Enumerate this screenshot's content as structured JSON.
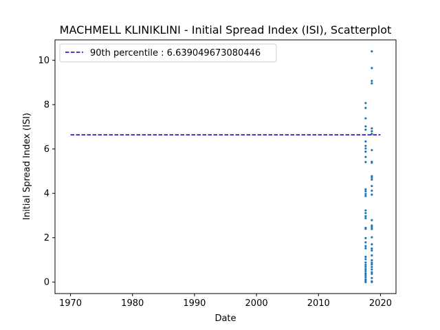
{
  "chart_data": {
    "type": "scatter",
    "title": "MACHMELL KLINIKLINI - Initial Spread Index (ISI), Scatterplot",
    "xlabel": "Date",
    "ylabel": "Initial Spread Index (ISI)",
    "xlim": [
      1967.5,
      2022.5
    ],
    "ylim": [
      -0.52,
      10.92
    ],
    "xticks": [
      1970,
      1980,
      1990,
      2000,
      2010,
      2020
    ],
    "yticks": [
      0,
      2,
      4,
      6,
      8,
      10
    ],
    "grid": false,
    "legend_position": "upper-left",
    "reference_line": {
      "label": "90th percentile : 6.639049673080446",
      "value": 6.639049673080446,
      "x_range": [
        1970,
        2020
      ],
      "color": "#0000cc",
      "style": "dashed"
    },
    "series": [
      {
        "color": "#1f77b4",
        "points": [
          {
            "x": 2017.6,
            "y": 8.07
          },
          {
            "x": 2017.6,
            "y": 7.85
          },
          {
            "x": 2017.6,
            "y": 7.38
          },
          {
            "x": 2017.6,
            "y": 7.02
          },
          {
            "x": 2017.6,
            "y": 6.87
          },
          {
            "x": 2017.6,
            "y": 6.34
          },
          {
            "x": 2017.6,
            "y": 6.14
          },
          {
            "x": 2017.6,
            "y": 6.02
          },
          {
            "x": 2017.6,
            "y": 5.88
          },
          {
            "x": 2017.6,
            "y": 5.64
          },
          {
            "x": 2017.6,
            "y": 5.41
          },
          {
            "x": 2017.6,
            "y": 4.18
          },
          {
            "x": 2017.6,
            "y": 4.09
          },
          {
            "x": 2017.6,
            "y": 3.97
          },
          {
            "x": 2017.6,
            "y": 3.88
          },
          {
            "x": 2017.6,
            "y": 3.23
          },
          {
            "x": 2017.6,
            "y": 3.11
          },
          {
            "x": 2017.6,
            "y": 2.97
          },
          {
            "x": 2017.6,
            "y": 2.88
          },
          {
            "x": 2017.6,
            "y": 2.44
          },
          {
            "x": 2017.6,
            "y": 2.4
          },
          {
            "x": 2017.6,
            "y": 1.98
          },
          {
            "x": 2017.6,
            "y": 1.79
          },
          {
            "x": 2017.6,
            "y": 1.62
          },
          {
            "x": 2017.6,
            "y": 1.52
          },
          {
            "x": 2017.6,
            "y": 1.14
          },
          {
            "x": 2017.6,
            "y": 1.03
          },
          {
            "x": 2017.6,
            "y": 0.88
          },
          {
            "x": 2017.6,
            "y": 0.77
          },
          {
            "x": 2017.6,
            "y": 0.68
          },
          {
            "x": 2017.6,
            "y": 0.58
          },
          {
            "x": 2017.6,
            "y": 0.49
          },
          {
            "x": 2017.6,
            "y": 0.39
          },
          {
            "x": 2017.6,
            "y": 0.31
          },
          {
            "x": 2017.6,
            "y": 0.22
          },
          {
            "x": 2017.6,
            "y": 0.12
          },
          {
            "x": 2017.6,
            "y": 0.05
          },
          {
            "x": 2017.6,
            "y": 0.0
          },
          {
            "x": 2018.6,
            "y": 10.4
          },
          {
            "x": 2018.6,
            "y": 9.65
          },
          {
            "x": 2018.6,
            "y": 9.07
          },
          {
            "x": 2018.6,
            "y": 8.96
          },
          {
            "x": 2018.6,
            "y": 6.93
          },
          {
            "x": 2018.6,
            "y": 6.8
          },
          {
            "x": 2018.6,
            "y": 6.68
          },
          {
            "x": 2018.6,
            "y": 5.95
          },
          {
            "x": 2018.6,
            "y": 5.42
          },
          {
            "x": 2018.6,
            "y": 5.38
          },
          {
            "x": 2018.6,
            "y": 4.77
          },
          {
            "x": 2018.6,
            "y": 4.71
          },
          {
            "x": 2018.6,
            "y": 4.62
          },
          {
            "x": 2018.6,
            "y": 4.33
          },
          {
            "x": 2018.6,
            "y": 4.12
          },
          {
            "x": 2018.6,
            "y": 3.94
          },
          {
            "x": 2018.6,
            "y": 2.79
          },
          {
            "x": 2018.6,
            "y": 2.55
          },
          {
            "x": 2018.6,
            "y": 2.47
          },
          {
            "x": 2018.6,
            "y": 2.39
          },
          {
            "x": 2018.6,
            "y": 2.02
          },
          {
            "x": 2018.6,
            "y": 1.7
          },
          {
            "x": 2018.6,
            "y": 1.51
          },
          {
            "x": 2018.6,
            "y": 1.42
          },
          {
            "x": 2018.6,
            "y": 1.2
          },
          {
            "x": 2018.6,
            "y": 0.98
          },
          {
            "x": 2018.6,
            "y": 0.87
          },
          {
            "x": 2018.6,
            "y": 0.79
          },
          {
            "x": 2018.6,
            "y": 0.68
          },
          {
            "x": 2018.6,
            "y": 0.57
          },
          {
            "x": 2018.6,
            "y": 0.44
          },
          {
            "x": 2018.6,
            "y": 0.37
          },
          {
            "x": 2018.6,
            "y": 0.18
          },
          {
            "x": 2018.6,
            "y": 0.03
          },
          {
            "x": 2018.6,
            "y": 0.0
          }
        ]
      }
    ]
  }
}
